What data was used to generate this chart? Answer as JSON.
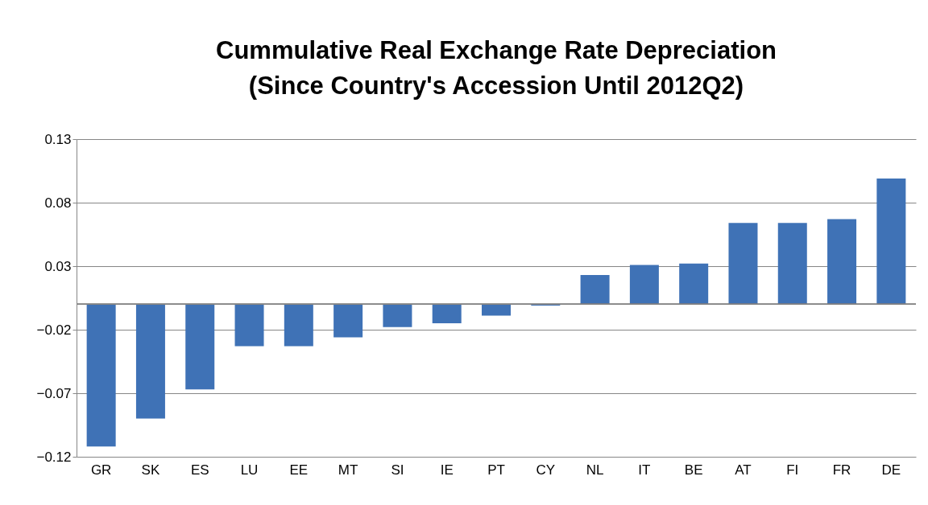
{
  "chart_data": {
    "type": "bar",
    "title": "Cummulative Real Exchange Rate Depreciation\n(Since Country's Accession Until 2012Q2)",
    "categories": [
      "GR",
      "SK",
      "ES",
      "LU",
      "EE",
      "MT",
      "SI",
      "IE",
      "PT",
      "CY",
      "NL",
      "IT",
      "BE",
      "AT",
      "FI",
      "FR",
      "DE"
    ],
    "values": [
      -0.112,
      -0.09,
      -0.067,
      -0.033,
      -0.033,
      -0.026,
      -0.018,
      -0.015,
      -0.009,
      -0.001,
      0.023,
      0.031,
      0.032,
      0.064,
      0.064,
      0.067,
      0.099
    ],
    "color": "#3f72b6",
    "ylim": [
      -0.12,
      0.13
    ],
    "yticks": [
      -0.12,
      -0.07,
      -0.02,
      0.03,
      0.08,
      0.13
    ],
    "grid": "y"
  }
}
